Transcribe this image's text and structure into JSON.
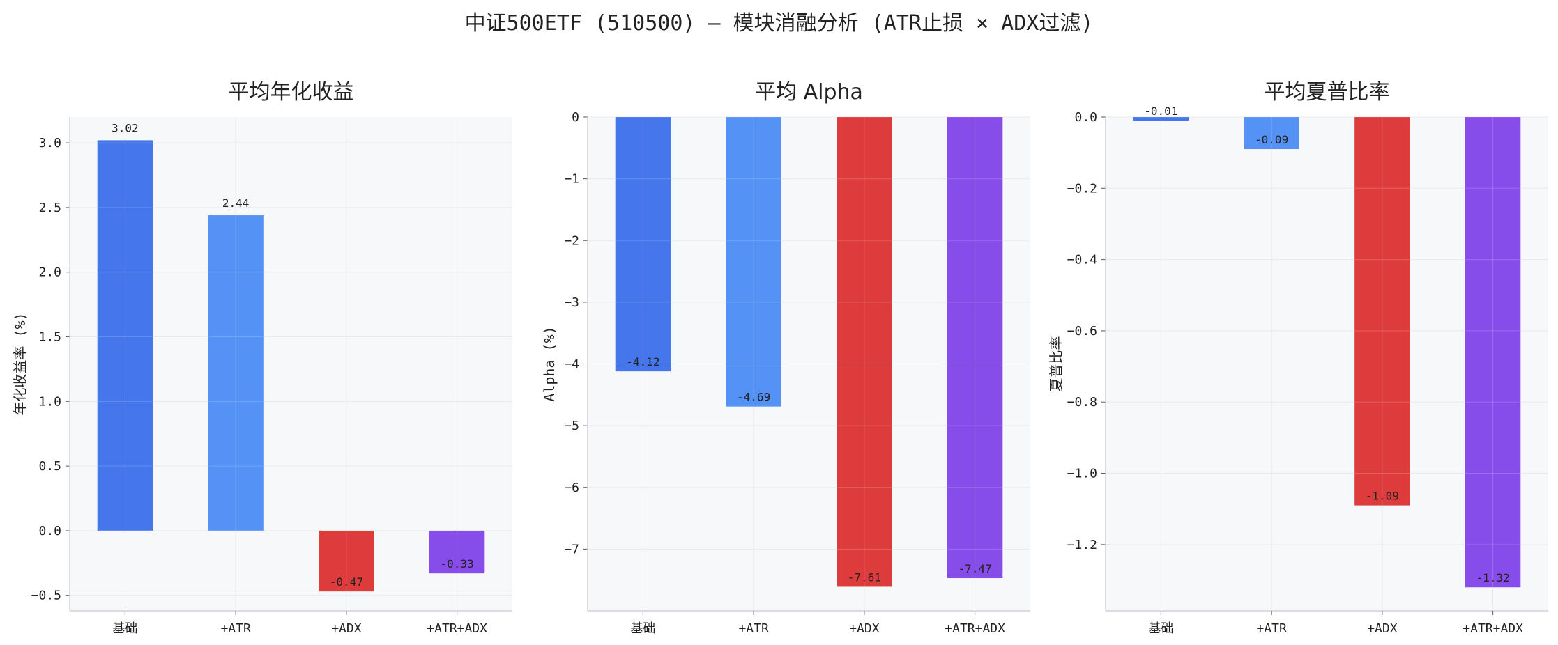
{
  "suptitle": "中证500ETF (510500) — 模块消融分析 (ATR止损 × ADX过滤)",
  "colors": {
    "bars": [
      "#3b6fea",
      "#4b8cf6",
      "#dc3131",
      "#8143ea"
    ],
    "panel_bg": "#f7f8fa",
    "grid": "#e3e6ea",
    "axis": "#cfd3d8"
  },
  "chart_data": [
    {
      "type": "bar",
      "title": "平均年化收益",
      "ylabel": "年化收益率 (%)",
      "categories": [
        "基础",
        "+ATR",
        "+ADX",
        "+ATR+ADX"
      ],
      "values": [
        3.02,
        2.44,
        -0.47,
        -0.33
      ],
      "data_labels": [
        "3.02",
        "2.44",
        "-0.47",
        "-0.33"
      ],
      "ylim": [
        -0.62,
        3.2
      ],
      "yticks": [
        -0.5,
        0.0,
        0.5,
        1.0,
        1.5,
        2.0,
        2.5,
        3.0
      ],
      "ytick_labels": [
        "−0.5",
        "0.0",
        "0.5",
        "1.0",
        "1.5",
        "2.0",
        "2.5",
        "3.0"
      ],
      "grid": true
    },
    {
      "type": "bar",
      "title": "平均 Alpha",
      "ylabel": "Alpha (%)",
      "categories": [
        "基础",
        "+ATR",
        "+ADX",
        "+ATR+ADX"
      ],
      "values": [
        -4.12,
        -4.69,
        -7.61,
        -7.47
      ],
      "data_labels": [
        "-4.12",
        "-4.69",
        "-7.61",
        "-7.47"
      ],
      "ylim": [
        -8.0,
        0.0
      ],
      "yticks": [
        -7,
        -6,
        -5,
        -4,
        -3,
        -2,
        -1,
        0
      ],
      "ytick_labels": [
        "−7",
        "−6",
        "−5",
        "−4",
        "−3",
        "−2",
        "−1",
        "0"
      ],
      "grid": true
    },
    {
      "type": "bar",
      "title": "平均夏普比率",
      "ylabel": "夏普比率",
      "categories": [
        "基础",
        "+ATR",
        "+ADX",
        "+ATR+ADX"
      ],
      "values": [
        -0.01,
        -0.09,
        -1.09,
        -1.32
      ],
      "data_labels": [
        "-0.01",
        "-0.09",
        "-1.09",
        "-1.32"
      ],
      "ylim": [
        -1.386,
        0.0
      ],
      "yticks": [
        -1.2,
        -1.0,
        -0.8,
        -0.6,
        -0.4,
        -0.2,
        0.0
      ],
      "ytick_labels": [
        "−1.2",
        "−1.0",
        "−0.8",
        "−0.6",
        "−0.4",
        "−0.2",
        "0.0"
      ],
      "grid": true
    }
  ]
}
